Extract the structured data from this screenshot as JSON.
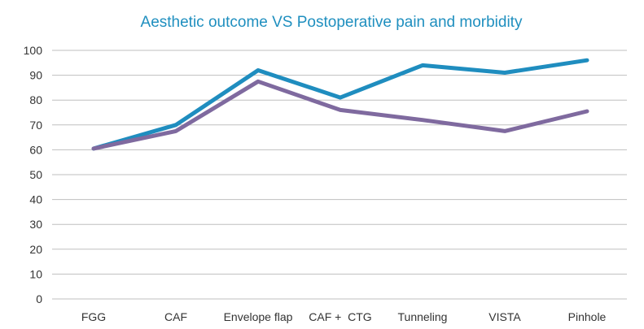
{
  "chart_data": {
    "type": "line",
    "title": "Aesthetic outcome VS Postoperative pain and morbidity",
    "xlabel": "",
    "ylabel": "",
    "categories": [
      "FGG",
      "CAF",
      "Envelope flap",
      "CAF +  CTG",
      "Tunneling",
      "VISTA",
      "Pinhole"
    ],
    "ylim": [
      0,
      100
    ],
    "yticks": [
      "0",
      "10",
      "20",
      "30",
      "40",
      "50",
      "60",
      "70",
      "80",
      "90",
      "100"
    ],
    "grid": true,
    "legend": "none",
    "series": [
      {
        "values": [
          60.5,
          70,
          92,
          81,
          94,
          91,
          96
        ],
        "color": "#1f8dbf"
      },
      {
        "values": [
          60.5,
          67.5,
          87.5,
          76,
          72,
          67.5,
          75.5
        ],
        "color": "#7f6a9f"
      }
    ]
  }
}
